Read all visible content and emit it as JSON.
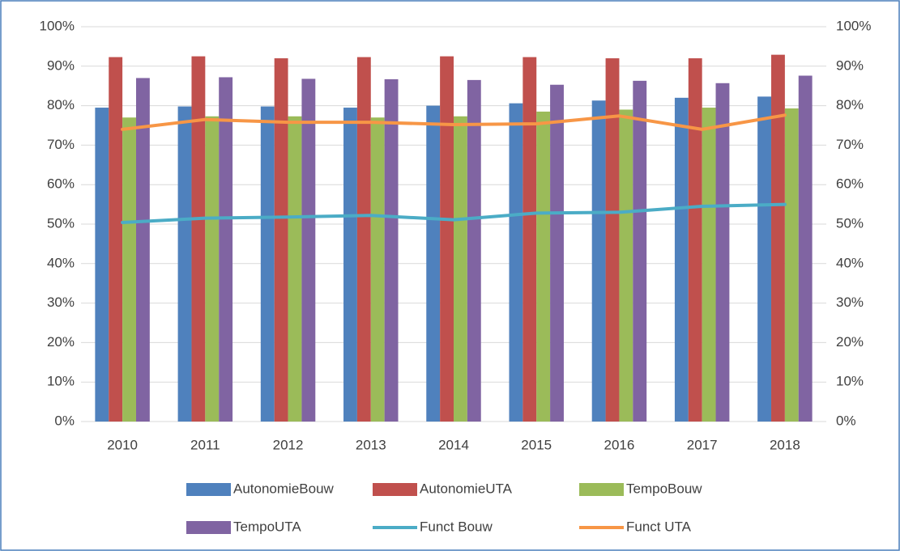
{
  "chart_data": {
    "type": "bar",
    "categories": [
      "2010",
      "2011",
      "2012",
      "2013",
      "2014",
      "2015",
      "2016",
      "2017",
      "2018"
    ],
    "series": [
      {
        "name": "AutonomieBouw",
        "type": "bar",
        "color": "#4f81bd",
        "values": [
          79.5,
          79.8,
          79.8,
          79.5,
          80.0,
          80.6,
          81.3,
          82.0,
          82.3
        ]
      },
      {
        "name": "AutonomieUTA",
        "type": "bar",
        "color": "#c0504d",
        "values": [
          92.3,
          92.5,
          92.0,
          92.3,
          92.5,
          92.3,
          92.0,
          92.0,
          92.9
        ]
      },
      {
        "name": "TempoBouw",
        "type": "bar",
        "color": "#9bbb59",
        "values": [
          77.0,
          77.3,
          77.3,
          77.0,
          77.3,
          78.5,
          79.0,
          79.5,
          79.3
        ]
      },
      {
        "name": "TempoUTA",
        "type": "bar",
        "color": "#8064a2",
        "values": [
          87.0,
          87.2,
          86.8,
          86.7,
          86.5,
          85.3,
          86.3,
          85.7,
          87.6
        ]
      },
      {
        "name": "Funct Bouw",
        "type": "line",
        "axis": "y2",
        "color": "#4bacc6",
        "values": [
          50.4,
          51.5,
          51.8,
          52.2,
          51.1,
          52.8,
          53.0,
          54.5,
          55.0
        ]
      },
      {
        "name": "Funct UTA",
        "type": "line",
        "axis": "y2",
        "color": "#f79646",
        "values": [
          74.0,
          76.5,
          75.8,
          75.8,
          75.2,
          75.4,
          77.4,
          74.0,
          77.6
        ]
      }
    ],
    "ylim": [
      0,
      100
    ],
    "yticks": [
      {
        "value": 0,
        "label": "0%"
      },
      {
        "value": 10,
        "label": "10%"
      },
      {
        "value": 20,
        "label": "20%"
      },
      {
        "value": 30,
        "label": "30%"
      },
      {
        "value": 40,
        "label": "40%"
      },
      {
        "value": 50,
        "label": "50%"
      },
      {
        "value": 60,
        "label": "60%"
      },
      {
        "value": 70,
        "label": "70%"
      },
      {
        "value": 80,
        "label": "80%"
      },
      {
        "value": 90,
        "label": "90%"
      },
      {
        "value": 100,
        "label": "100%"
      }
    ],
    "y2lim": [
      0,
      100
    ],
    "y2ticks": [
      {
        "value": 0,
        "label": "0%"
      },
      {
        "value": 10,
        "label": "10%"
      },
      {
        "value": 20,
        "label": "20%"
      },
      {
        "value": 30,
        "label": "30%"
      },
      {
        "value": 40,
        "label": "40%"
      },
      {
        "value": 50,
        "label": "50%"
      },
      {
        "value": 60,
        "label": "60%"
      },
      {
        "value": 70,
        "label": "70%"
      },
      {
        "value": 80,
        "label": "80%"
      },
      {
        "value": 90,
        "label": "90%"
      },
      {
        "value": 100,
        "label": "100%"
      }
    ],
    "grid": true,
    "legend": "bottom"
  }
}
